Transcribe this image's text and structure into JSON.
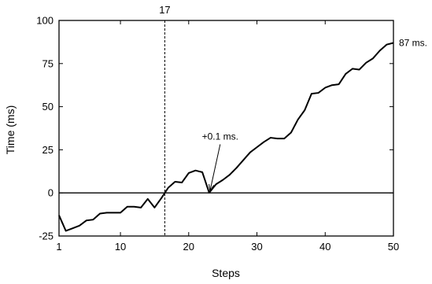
{
  "chart_data": {
    "type": "line",
    "xlabel": "Steps",
    "ylabel": "Time (ms)",
    "xlim": [
      1,
      50
    ],
    "ylim": [
      -25,
      100
    ],
    "xticks": [
      1,
      10,
      20,
      30,
      40,
      50
    ],
    "yticks": [
      -25,
      0,
      25,
      50,
      75,
      100
    ],
    "grid": false,
    "series": [
      {
        "x": [
          1,
          2,
          3,
          4,
          5,
          6,
          7,
          8,
          9,
          10,
          11,
          12,
          13,
          14,
          15,
          16,
          17,
          18,
          19,
          20,
          21,
          22,
          23,
          24,
          25,
          26,
          27,
          28,
          29,
          30,
          31,
          32,
          33,
          34,
          35,
          36,
          37,
          38,
          39,
          40,
          41,
          42,
          43,
          44,
          45,
          46,
          47,
          48,
          49,
          50
        ],
        "values": [
          -13,
          -22,
          -20.5,
          -19,
          -16,
          -15.5,
          -12,
          -11.5,
          -11.5,
          -11.5,
          -8,
          -8,
          -8.5,
          -3.5,
          -8.5,
          -3,
          3,
          6.5,
          6,
          11.5,
          13,
          12,
          0.1,
          5,
          7.5,
          10.5,
          14.5,
          19,
          23.5,
          26.5,
          29.5,
          32,
          31.5,
          31.5,
          35,
          42.5,
          48,
          57.5,
          58,
          61,
          62.5,
          63,
          69,
          72,
          71.5,
          75.5,
          78,
          82.5,
          86,
          87
        ]
      }
    ],
    "vline": {
      "x": 16.5,
      "label": "17"
    },
    "annotations": [
      {
        "text": "+0.1 ms.",
        "x": 23,
        "y": 0.1
      },
      {
        "text": "87 ms.",
        "x": 50,
        "y": 87
      }
    ]
  }
}
